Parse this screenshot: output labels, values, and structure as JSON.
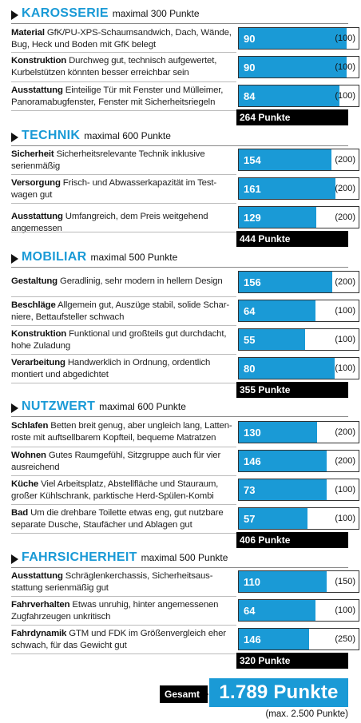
{
  "chart_data": {
    "type": "bar",
    "title": "",
    "sections": [
      {
        "title": "KAROSSERIE",
        "max_label": "maximal 300 Punkte",
        "total_label": "264 Punkte",
        "rows": [
          {
            "label": "Material",
            "text": "GfK/PU-XPS-Schaumsandwich, Dach, Wände, Bug, Heck und Boden mit GfK belegt",
            "value": 90,
            "max": 100,
            "value_label": "90",
            "max_label": "(100)"
          },
          {
            "label": "Konstruktion",
            "text": "Durchweg gut, technisch aufgewertet, Kurbelstützen könnten besser erreichbar sein",
            "value": 90,
            "max": 100,
            "value_label": "90",
            "max_label": "(100)"
          },
          {
            "label": "Ausstattung",
            "text": "Einteilige Tür mit Fenster und Mülleimer, Panoramabugfenster, Fenster mit Sicherheitsriegeln",
            "value": 84,
            "max": 100,
            "value_label": "84",
            "max_label": "(100)"
          }
        ]
      },
      {
        "title": "TECHNIK",
        "max_label": "maximal 600 Punkte",
        "total_label": "444 Punkte",
        "rows": [
          {
            "label": "Sicherheit",
            "text": "Sicherheitsrelevante Technik inklusive serienmäßig",
            "value": 154,
            "max": 200,
            "value_label": "154",
            "max_label": "(200)"
          },
          {
            "label": "Versorgung",
            "text": "Frisch- und Abwasserkapazität im Test­wagen gut",
            "value": 161,
            "max": 200,
            "value_label": "161",
            "max_label": "(200)"
          },
          {
            "label": "Ausstattung",
            "text": "Umfangreich, dem Preis weitgehend angemessen",
            "value": 129,
            "max": 200,
            "value_label": "129",
            "max_label": "(200)"
          }
        ]
      },
      {
        "title": "MOBILIAR",
        "max_label": "maximal 500 Punkte",
        "total_label": "355 Punkte",
        "rows": [
          {
            "label": "Gestaltung",
            "text": "Geradlinig, sehr modern in hellem Design",
            "value": 156,
            "max": 200,
            "value_label": "156",
            "max_label": "(200)"
          },
          {
            "label": "Beschläge",
            "text": "Allgemein gut, Auszüge stabil, solide Schar­niere, Bettaufsteller schwach",
            "value": 64,
            "max": 100,
            "value_label": "64",
            "max_label": "(100)"
          },
          {
            "label": "Konstruktion",
            "text": "Funktional und großteils gut durchdacht, hohe Zuladung",
            "value": 55,
            "max": 100,
            "value_label": "55",
            "max_label": "(100)"
          },
          {
            "label": "Verarbeitung",
            "text": "Handwerklich in Ordnung, ordentlich montiert und abgedichtet",
            "value": 80,
            "max": 100,
            "value_label": "80",
            "max_label": "(100)"
          }
        ]
      },
      {
        "title": "NUTZWERT",
        "max_label": "maximal 600 Punkte",
        "total_label": "406 Punkte",
        "rows": [
          {
            "label": "Schlafen",
            "text": "Betten breit genug, aber ungleich lang, Latten­roste mit auftsellbarem Kopfteil, bequeme Matratzen",
            "value": 130,
            "max": 200,
            "value_label": "130",
            "max_label": "(200)"
          },
          {
            "label": "Wohnen",
            "text": "Gutes Raumgefühl, Sitzgruppe auch für vier ausreichend",
            "value": 146,
            "max": 200,
            "value_label": "146",
            "max_label": "(200)"
          },
          {
            "label": "Küche",
            "text": "Viel Arbeitsplatz, Abstellfläche und Stauraum, großer Kühlschrank, parktische Herd-Spülen-Kombi",
            "value": 73,
            "max": 100,
            "value_label": "73",
            "max_label": "(100)"
          },
          {
            "label": "Bad",
            "text": "Um die drehbare Toilette etwas eng, gut nutzbare separate Dusche, Staufächer und Ablagen gut",
            "value": 57,
            "max": 100,
            "value_label": "57",
            "max_label": "(100)"
          }
        ]
      },
      {
        "title": "FAHRSICHERHEIT",
        "max_label": "maximal 500 Punkte",
        "total_label": "320 Punkte",
        "rows": [
          {
            "label": "Ausstattung",
            "text": "Schräglenkerchassis, Sicherheitsaus­stattung serienmäßig gut",
            "value": 110,
            "max": 150,
            "value_label": "110",
            "max_label": "(150)"
          },
          {
            "label": "Fahrverhalten",
            "text": "Etwas unruhig, hinter angemessenen Zugfahrzeugen unkritisch",
            "value": 64,
            "max": 100,
            "value_label": "64",
            "max_label": "(100)"
          },
          {
            "label": "Fahrdynamik",
            "text": "GTM und FDK im Größenvergleich eher schwach, für das Gewicht gut",
            "value": 146,
            "max": 250,
            "value_label": "146",
            "max_label": "(250)"
          }
        ]
      }
    ],
    "total": {
      "label": "Gesamt",
      "value_label": "1.789 Punkte",
      "max_label": "(max. 2.500 Punkte)"
    }
  },
  "colors": {
    "accent": "#1a9ad6",
    "dark": "#000000"
  }
}
